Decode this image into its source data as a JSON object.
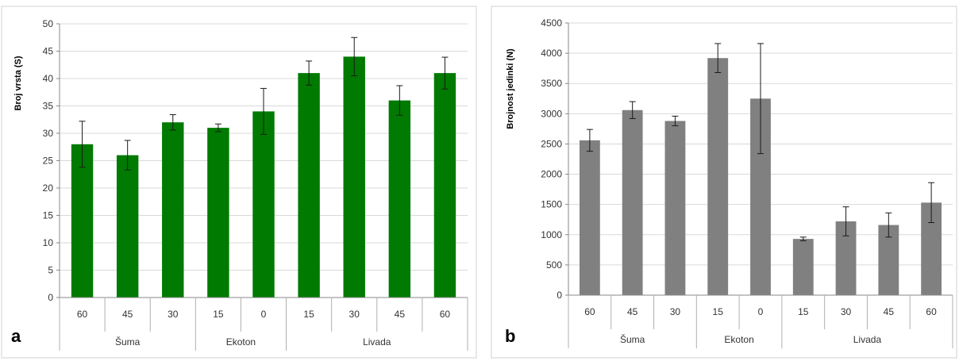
{
  "chart_data": [
    {
      "type": "bar",
      "panel_label": "a",
      "ylabel": "Broj vrsta (S)",
      "categories": [
        "60",
        "45",
        "30",
        "15",
        "0",
        "15",
        "30",
        "45",
        "60"
      ],
      "groups": [
        {
          "label": "Šuma",
          "span": [
            0,
            2
          ]
        },
        {
          "label": "Ekoton",
          "span": [
            3,
            4
          ]
        },
        {
          "label": "Livada",
          "span": [
            5,
            8
          ]
        }
      ],
      "values": [
        28,
        26,
        32,
        31,
        34,
        41,
        44,
        36,
        41
      ],
      "errors": [
        4.2,
        2.7,
        1.4,
        0.7,
        4.2,
        2.2,
        3.5,
        2.7,
        2.9
      ],
      "ylim": [
        0,
        50
      ],
      "yticks": [
        0,
        5,
        10,
        15,
        20,
        25,
        30,
        35,
        40,
        45,
        50
      ],
      "color": "#007a00",
      "grid": true
    },
    {
      "type": "bar",
      "panel_label": "b",
      "ylabel": "Brojnost jedinki (N)",
      "categories": [
        "60",
        "45",
        "30",
        "15",
        "0",
        "15",
        "30",
        "45",
        "60"
      ],
      "groups": [
        {
          "label": "Šuma",
          "span": [
            0,
            2
          ]
        },
        {
          "label": "Ekoton",
          "span": [
            3,
            4
          ]
        },
        {
          "label": "Livada",
          "span": [
            5,
            8
          ]
        }
      ],
      "values": [
        2560,
        3060,
        2880,
        3920,
        3250,
        930,
        1220,
        1160,
        1530
      ],
      "errors": [
        180,
        140,
        80,
        240,
        910,
        30,
        240,
        200,
        330
      ],
      "ylim": [
        0,
        4500
      ],
      "yticks": [
        0,
        500,
        1000,
        1500,
        2000,
        2500,
        3000,
        3500,
        4000,
        4500
      ],
      "color": "#808080",
      "grid": true
    }
  ]
}
